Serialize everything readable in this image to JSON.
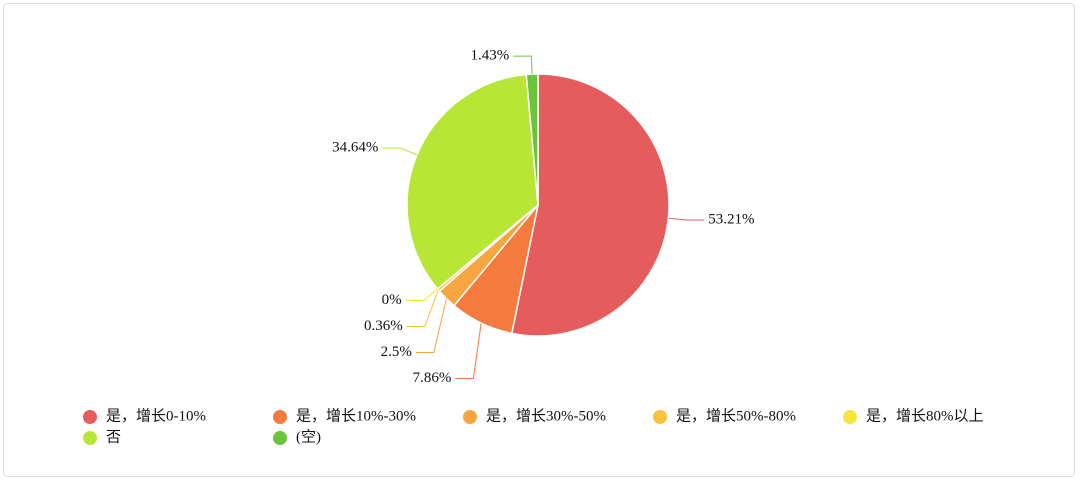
{
  "chart_data": {
    "type": "pie",
    "categories": [
      "是，增长0-10%",
      "是，增长10%-30%",
      "是，增长30%-50%",
      "是，增长50%-80%",
      "是，增长80%以上",
      "否",
      "(空)"
    ],
    "values": [
      53.21,
      7.86,
      2.5,
      0.36,
      0,
      34.64,
      1.43
    ],
    "value_labels": [
      "53.21%",
      "7.86%",
      "2.5%",
      "0.36%",
      "0%",
      "34.64%",
      "1.43%"
    ],
    "colors": [
      "#e55c5c",
      "#f47a3d",
      "#f7a540",
      "#f9c23c",
      "#f5e63a",
      "#b8e637",
      "#6cc43c"
    ]
  }
}
